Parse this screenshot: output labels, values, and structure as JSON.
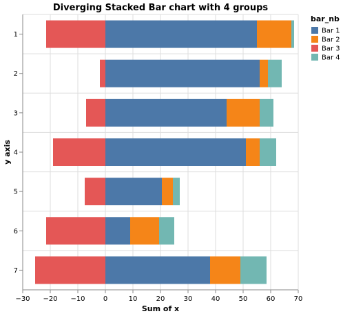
{
  "chart_data": {
    "type": "bar",
    "orientation": "horizontal",
    "stacking": "diverging",
    "title": "Diverging Stacked Bar chart with 4 groups",
    "xlabel": "Sum of x",
    "ylabel": "y axis",
    "xlim": [
      -30,
      70
    ],
    "x_ticks": [
      -30,
      -20,
      -10,
      0,
      10,
      20,
      30,
      40,
      50,
      60,
      70
    ],
    "categories": [
      "1",
      "2",
      "3",
      "4",
      "5",
      "6",
      "7"
    ],
    "grid": true,
    "legend": {
      "title": "bar_nb",
      "placement": "top-right"
    },
    "series": [
      {
        "name": "Bar 1",
        "color": "#4c78a8",
        "values": [
          55,
          56,
          44,
          51,
          20.5,
          9,
          38
        ]
      },
      {
        "name": "Bar 2",
        "color": "#f58518",
        "values": [
          12.5,
          3,
          12,
          5,
          4,
          10.5,
          11
        ]
      },
      {
        "name": "Bar 3",
        "color": "#e45756",
        "values": [
          -21.5,
          -2,
          -7,
          -19,
          -7.5,
          -21.5,
          -25.5
        ]
      },
      {
        "name": "Bar 4",
        "color": "#72b7b2",
        "values": [
          1,
          5,
          5,
          6,
          2.5,
          5.5,
          9.5
        ]
      }
    ]
  }
}
